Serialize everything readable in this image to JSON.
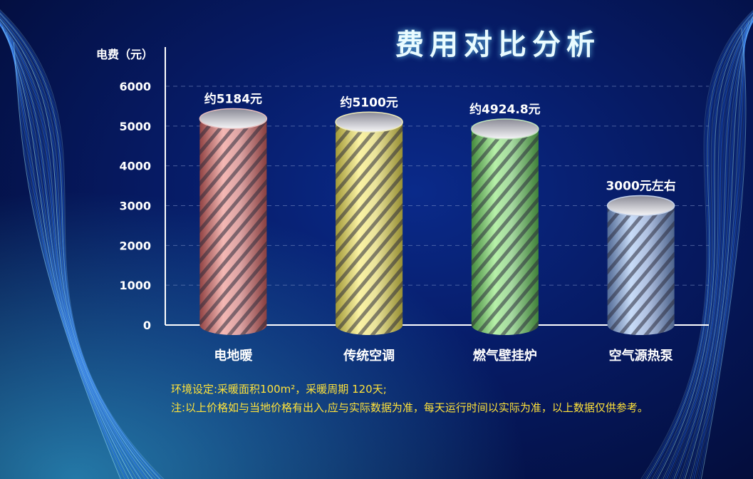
{
  "title": "费用对比分析",
  "notes": [
    "环境设定:采暖面积100m²，采暖周期 120天;",
    "注:以上价格如与当地价格有出入,应与实际数据为准，每天运行时间以实际为准，以上数据仅供参考。"
  ],
  "chart_data": {
    "type": "bar",
    "ylabel": "电费（元）",
    "ylim": [
      0,
      6000
    ],
    "yticks": [
      0,
      1000,
      2000,
      3000,
      4000,
      5000,
      6000
    ],
    "grid": true,
    "categories": [
      "电地暖",
      "传统空调",
      "燃气壁挂炉",
      "空气源热泵"
    ],
    "values": [
      5184,
      5100,
      4924.8,
      3000
    ],
    "data_labels": [
      "约5184元",
      "约5100元",
      "约4924.8元",
      "3000元左右"
    ],
    "colors": [
      "#c25a5a",
      "#d8cc4a",
      "#5cb852",
      "#6f8fc8"
    ],
    "highlight_colors": [
      "#f4b8b4",
      "#fbf3a4",
      "#b6f0a8",
      "#c8dcf8"
    ]
  }
}
